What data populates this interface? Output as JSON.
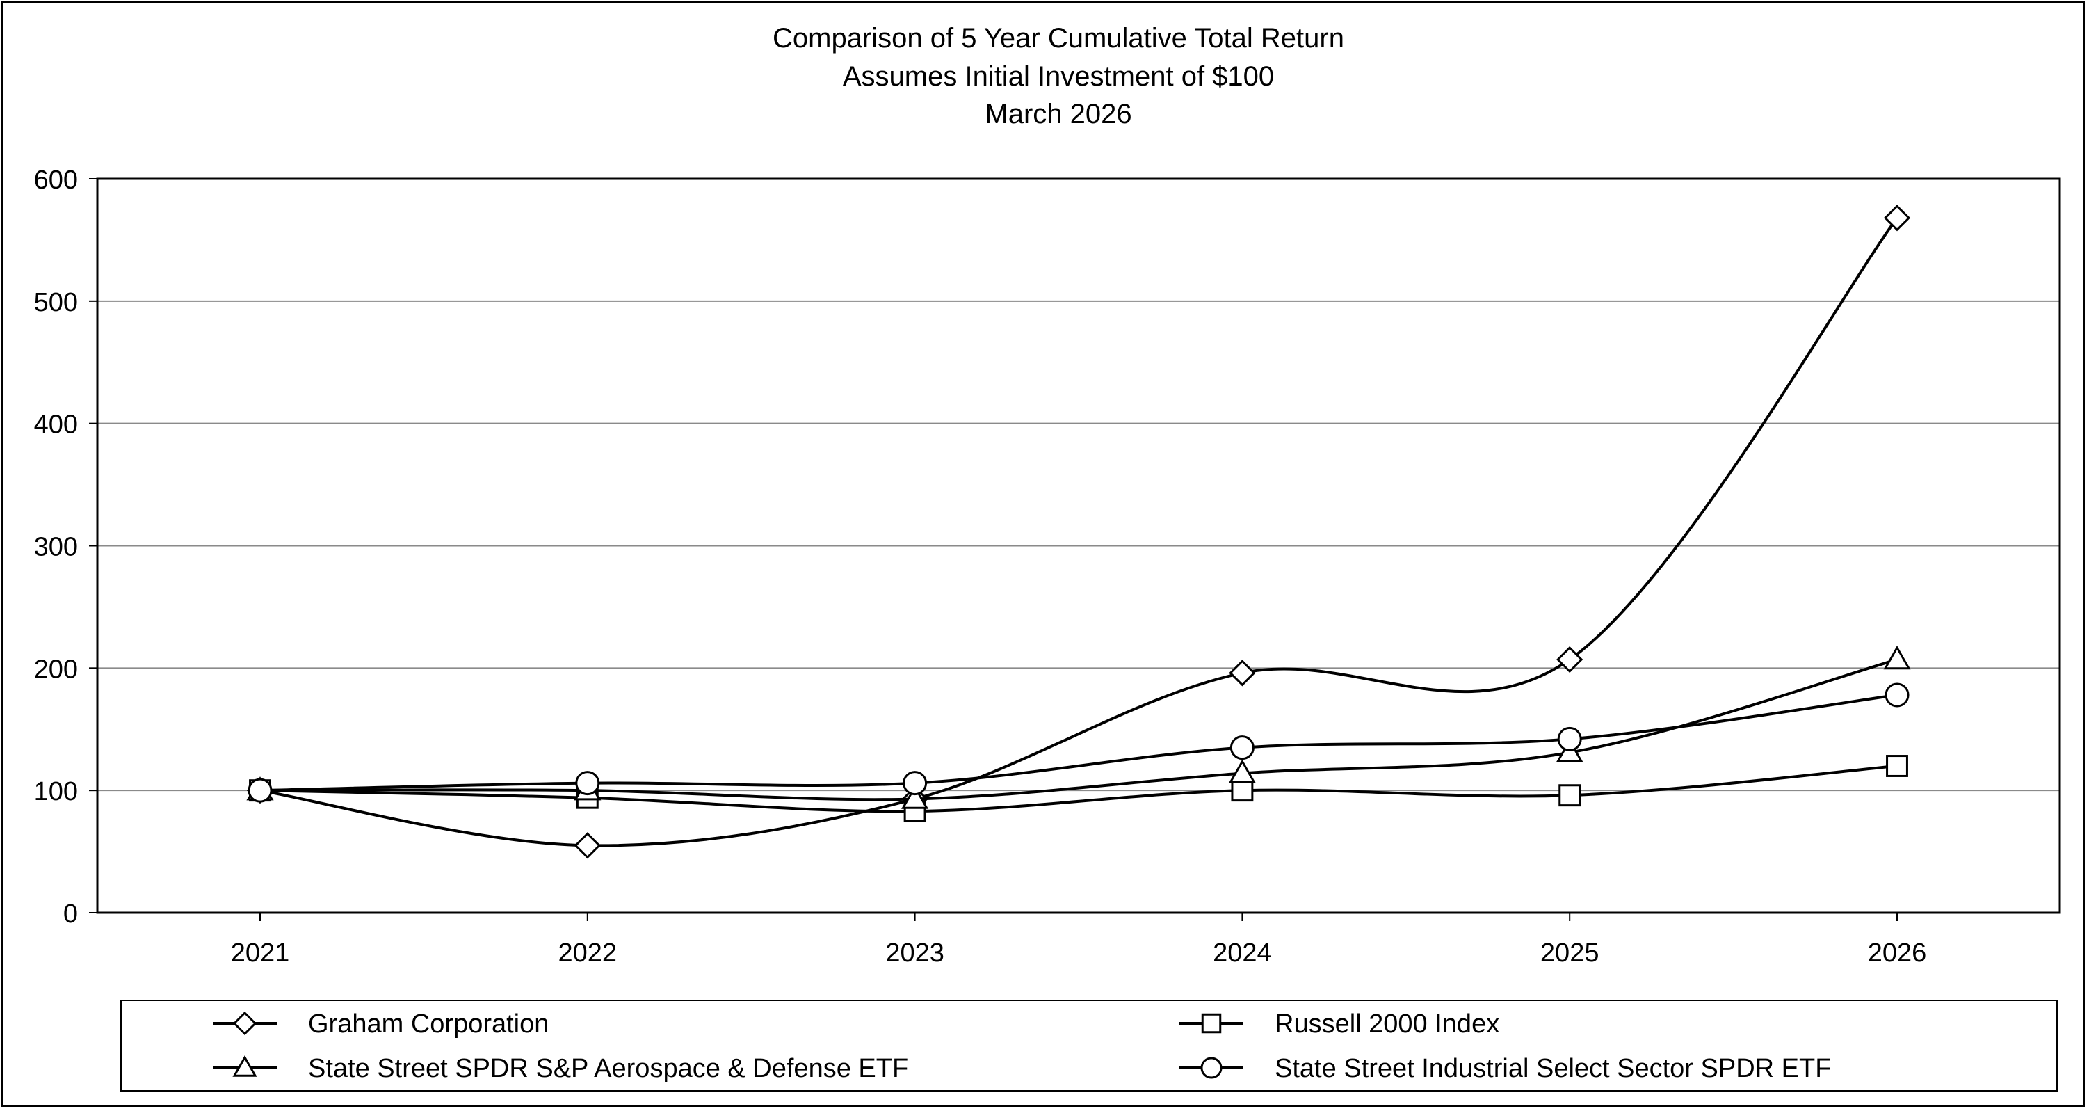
{
  "chart_data": {
    "type": "line",
    "title_lines": [
      "Comparison of 5 Year Cumulative Total Return",
      "Assumes Initial Investment of $100",
      "March 2026"
    ],
    "x": [
      "2021",
      "2022",
      "2023",
      "2024",
      "2025",
      "2026"
    ],
    "y_ticks": [
      "0",
      "100",
      "200",
      "300",
      "400",
      "500",
      "600"
    ],
    "ylim": [
      0,
      600
    ],
    "grid": "horizontal",
    "legend_position": "bottom",
    "series": [
      {
        "name": "Graham Corporation",
        "marker": "diamond",
        "values": [
          100,
          55,
          93,
          196,
          207,
          568
        ]
      },
      {
        "name": "Russell 2000 Index",
        "marker": "square",
        "values": [
          100,
          94,
          83,
          100,
          96,
          120
        ]
      },
      {
        "name": "State Street SPDR S&P Aerospace & Defense ETF",
        "marker": "triangle",
        "values": [
          100,
          100,
          93,
          114,
          131,
          207
        ]
      },
      {
        "name": "State Street Industrial Select Sector SPDR ETF",
        "marker": "circle",
        "values": [
          100,
          106,
          106,
          135,
          142,
          178
        ]
      }
    ]
  }
}
